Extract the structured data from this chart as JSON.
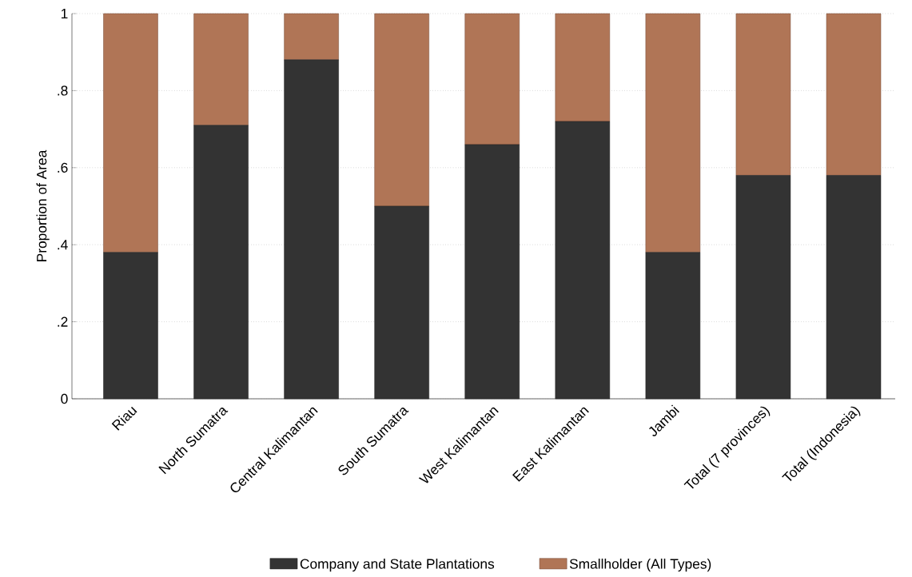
{
  "chart_data": {
    "type": "bar",
    "stacked": true,
    "ylabel": "Proportion of Area",
    "categories": [
      "Riau",
      "North Sumatra",
      "Central Kalimantan",
      "South Sumatra",
      "West Kalimantan",
      "East Kalimantan",
      "Jambi",
      "Total (7 provinces)",
      "Total (Indonesia)"
    ],
    "series": [
      {
        "name": "Company and State Plantations",
        "color": "#333333",
        "values": [
          0.38,
          0.71,
          0.88,
          0.5,
          0.66,
          0.72,
          0.38,
          0.58,
          0.58
        ]
      },
      {
        "name": "Smallholder (All Types)",
        "color": "#b07556",
        "values": [
          0.62,
          0.29,
          0.12,
          0.5,
          0.34,
          0.28,
          0.62,
          0.42,
          0.42
        ]
      }
    ],
    "ylim": [
      0,
      1
    ],
    "yticks": [
      0,
      {
        "value": 0.2,
        "label": ".2"
      },
      {
        "value": 0.4,
        "label": ".4"
      },
      {
        "value": 0.6,
        "label": ".6"
      },
      {
        "value": 0.8,
        "label": ".8"
      },
      1
    ],
    "grid": "y",
    "legend": "bottom"
  }
}
